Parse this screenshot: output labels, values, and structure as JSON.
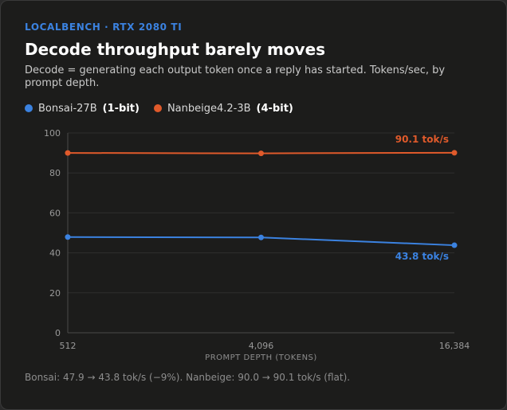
{
  "header": {
    "eyebrow": "LOCALBENCH · RTX 2080 TI",
    "title": "Decode throughput barely moves",
    "subtitle": "Decode = generating each output token once a reply has started. Tokens/sec, by prompt depth."
  },
  "legend": [
    {
      "name": "Bonsai-27B",
      "tag": "(1-bit)",
      "color": "#3b82e0"
    },
    {
      "name": "Nanbeige4.2-3B",
      "tag": "(4-bit)",
      "color": "#e05a2b"
    }
  ],
  "chart_data": {
    "type": "line",
    "x": [
      512,
      4096,
      16384
    ],
    "x_tick_labels": [
      "512",
      "4,096",
      "16,384"
    ],
    "xlabel": "PROMPT DEPTH (TOKENS)",
    "ylabel": "",
    "ylim": [
      0,
      100
    ],
    "y_ticks": [
      0,
      20,
      40,
      60,
      80,
      100
    ],
    "grid": true,
    "series": [
      {
        "name": "Bonsai-27B (1-bit)",
        "color": "#3b82e0",
        "values": [
          47.9,
          47.7,
          43.8
        ],
        "end_label": "43.8 tok/s"
      },
      {
        "name": "Nanbeige4.2-3B (4-bit)",
        "color": "#e05a2b",
        "values": [
          90.0,
          89.8,
          90.1
        ],
        "end_label": "90.1 tok/s"
      }
    ]
  },
  "footnote": "Bonsai: 47.9 → 43.8 tok/s (−9%). Nanbeige: 90.0 → 90.1 tok/s (flat)."
}
